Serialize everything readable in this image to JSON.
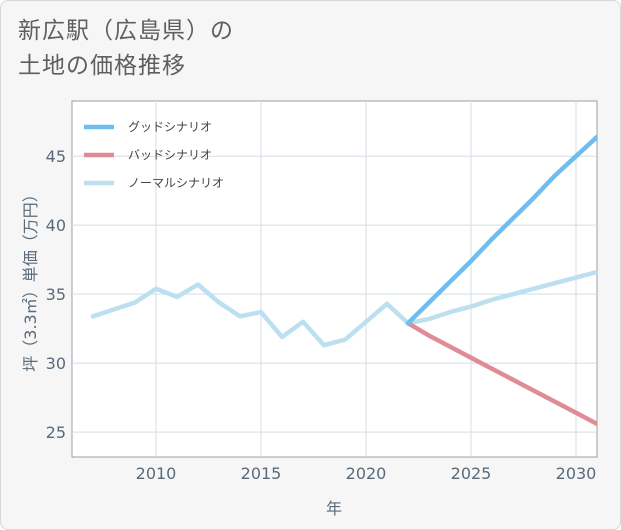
{
  "title_lines": [
    "新広駅（広島県）の",
    "土地の価格推移"
  ],
  "chart_data": {
    "type": "line",
    "title": "新広駅（広島県）の土地の価格推移",
    "xlabel": "年",
    "ylabel": "坪（3.3㎡）単価（万円）",
    "xlim": [
      2006,
      2031
    ],
    "ylim": [
      23.2,
      49
    ],
    "xticks": [
      2010,
      2015,
      2020,
      2025,
      2030
    ],
    "yticks": [
      25,
      30,
      35,
      40,
      45
    ],
    "legend_position": "top-left",
    "series": [
      {
        "name": "グッドシナリオ",
        "color": "#6dbdf0",
        "x": [
          2022,
          2023,
          2024,
          2025,
          2026,
          2027,
          2028,
          2029,
          2030,
          2031
        ],
        "y": [
          32.9,
          34.4,
          35.9,
          37.4,
          39.0,
          40.5,
          42.0,
          43.6,
          45.0,
          46.4
        ]
      },
      {
        "name": "バッドシナリオ",
        "color": "#de8d97",
        "x": [
          2022,
          2023,
          2024,
          2025,
          2026,
          2027,
          2028,
          2029,
          2030,
          2031
        ],
        "y": [
          32.9,
          32.0,
          31.2,
          30.4,
          29.6,
          28.8,
          28.0,
          27.2,
          26.4,
          25.6
        ]
      },
      {
        "name": "ノーマルシナリオ",
        "color": "#bde0f0",
        "x": [
          2007,
          2008,
          2009,
          2010,
          2011,
          2012,
          2013,
          2014,
          2015,
          2016,
          2017,
          2018,
          2019,
          2020,
          2021,
          2022,
          2023,
          2024,
          2025,
          2026,
          2027,
          2028,
          2029,
          2030,
          2031
        ],
        "y": [
          33.4,
          33.9,
          34.4,
          35.4,
          34.8,
          35.7,
          34.4,
          33.4,
          33.7,
          31.9,
          33.0,
          31.3,
          31.7,
          33.0,
          34.3,
          32.9,
          33.2,
          33.7,
          34.1,
          34.6,
          35.0,
          35.4,
          35.8,
          36.2,
          36.6
        ]
      }
    ]
  }
}
